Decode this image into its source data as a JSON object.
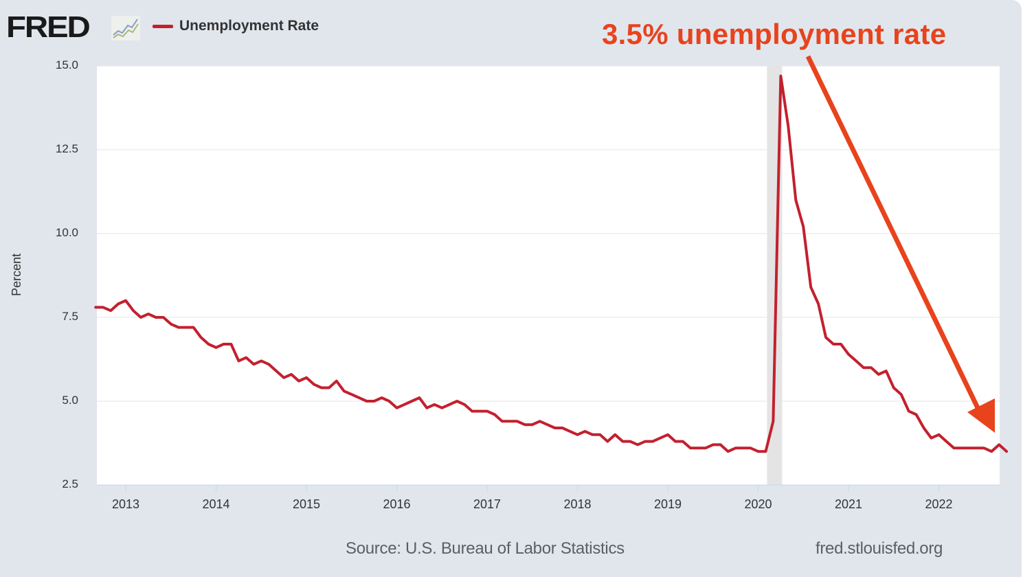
{
  "header": {
    "logo_text": "FRED",
    "logo_icon": "line-chart-icon",
    "legend_label": "Unemployment Rate"
  },
  "annotation": {
    "text": "3.5% unemployment rate",
    "arrow_icon": "arrow-down-right-icon",
    "color": "#e8431c"
  },
  "footer": {
    "source": "Source: U.S. Bureau of Labor Statistics",
    "website": "fred.stlouisfed.org"
  },
  "chart_data": {
    "type": "line",
    "title": "Unemployment Rate",
    "xlabel": "",
    "ylabel": "Percent",
    "ylim": [
      2.5,
      15.0
    ],
    "xlim": [
      "2012-09",
      "2022-09"
    ],
    "grid": true,
    "legend": "top-left",
    "yticks": [
      "15.0",
      "12.5",
      "10.0",
      "7.5",
      "5.0",
      "2.5"
    ],
    "ytick_values": [
      15.0,
      12.5,
      10.0,
      7.5,
      5.0,
      2.5
    ],
    "xticks": [
      "2013",
      "2014",
      "2015",
      "2016",
      "2017",
      "2018",
      "2019",
      "2020",
      "2021",
      "2022"
    ],
    "recession_shading": {
      "start": "2020-02",
      "end": "2020-04"
    },
    "line_color": "#c3202e",
    "series": [
      {
        "name": "Unemployment Rate",
        "start": "2012-09",
        "frequency": "monthly",
        "values": [
          7.8,
          7.8,
          7.7,
          7.9,
          8.0,
          7.7,
          7.5,
          7.6,
          7.5,
          7.5,
          7.3,
          7.2,
          7.2,
          7.2,
          6.9,
          6.7,
          6.6,
          6.7,
          6.7,
          6.2,
          6.3,
          6.1,
          6.2,
          6.1,
          5.9,
          5.7,
          5.8,
          5.6,
          5.7,
          5.5,
          5.4,
          5.4,
          5.6,
          5.3,
          5.2,
          5.1,
          5.0,
          5.0,
          5.1,
          5.0,
          4.8,
          4.9,
          5.0,
          5.1,
          4.8,
          4.9,
          4.8,
          4.9,
          5.0,
          4.9,
          4.7,
          4.7,
          4.7,
          4.6,
          4.4,
          4.4,
          4.4,
          4.3,
          4.3,
          4.4,
          4.3,
          4.2,
          4.2,
          4.1,
          4.0,
          4.1,
          4.0,
          4.0,
          3.8,
          4.0,
          3.8,
          3.8,
          3.7,
          3.8,
          3.8,
          3.9,
          4.0,
          3.8,
          3.8,
          3.6,
          3.6,
          3.6,
          3.7,
          3.7,
          3.5,
          3.6,
          3.6,
          3.6,
          3.5,
          3.5,
          4.4,
          14.7,
          13.2,
          11.0,
          10.2,
          8.4,
          7.9,
          6.9,
          6.7,
          6.7,
          6.4,
          6.2,
          6.0,
          6.0,
          5.8,
          5.9,
          5.4,
          5.2,
          4.7,
          4.6,
          4.2,
          3.9,
          4.0,
          3.8,
          3.6,
          3.6,
          3.6,
          3.6,
          3.6,
          3.5,
          3.7,
          3.5
        ]
      }
    ]
  }
}
